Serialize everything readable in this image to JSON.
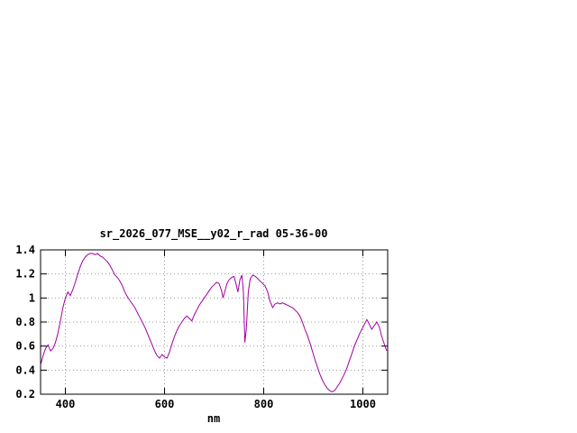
{
  "page": {
    "background_color": "#ffffff"
  },
  "chart_data": {
    "type": "line",
    "title": "sr_2026_077_MSE__y02_r_rad 05-36-00",
    "xlabel": "nm",
    "ylabel": "",
    "xlim": [
      350,
      1050
    ],
    "ylim": [
      0.2,
      1.4
    ],
    "x_ticks": [
      400,
      600,
      800,
      1000
    ],
    "x_tick_labels": [
      "400",
      "600",
      "800",
      "1000"
    ],
    "y_ticks": [
      0.2,
      0.4,
      0.6,
      0.8,
      1.0,
      1.2,
      1.4
    ],
    "y_tick_labels": [
      "0.2",
      "0.4",
      "0.6",
      "0.8",
      "1",
      "1.2",
      "1.4"
    ],
    "grid": true,
    "legend_position": "none",
    "line_color": "#a000a0",
    "grid_color": "#999999",
    "border_color": "#000000",
    "series": [
      {
        "name": "sr_2026_077_MSE__y02_r_rad",
        "points": [
          [
            350,
            0.44
          ],
          [
            355,
            0.52
          ],
          [
            360,
            0.58
          ],
          [
            365,
            0.61
          ],
          [
            370,
            0.56
          ],
          [
            375,
            0.58
          ],
          [
            380,
            0.63
          ],
          [
            385,
            0.71
          ],
          [
            390,
            0.81
          ],
          [
            395,
            0.92
          ],
          [
            400,
            1.0
          ],
          [
            405,
            1.05
          ],
          [
            410,
            1.02
          ],
          [
            415,
            1.07
          ],
          [
            420,
            1.13
          ],
          [
            425,
            1.2
          ],
          [
            430,
            1.26
          ],
          [
            435,
            1.31
          ],
          [
            440,
            1.34
          ],
          [
            445,
            1.36
          ],
          [
            450,
            1.37
          ],
          [
            455,
            1.37
          ],
          [
            460,
            1.36
          ],
          [
            465,
            1.37
          ],
          [
            470,
            1.35
          ],
          [
            475,
            1.34
          ],
          [
            480,
            1.32
          ],
          [
            485,
            1.3
          ],
          [
            490,
            1.27
          ],
          [
            495,
            1.23
          ],
          [
            500,
            1.19
          ],
          [
            505,
            1.17
          ],
          [
            510,
            1.14
          ],
          [
            515,
            1.1
          ],
          [
            520,
            1.05
          ],
          [
            525,
            1.01
          ],
          [
            530,
            0.98
          ],
          [
            535,
            0.95
          ],
          [
            540,
            0.92
          ],
          [
            545,
            0.88
          ],
          [
            550,
            0.84
          ],
          [
            555,
            0.8
          ],
          [
            560,
            0.76
          ],
          [
            565,
            0.71
          ],
          [
            570,
            0.66
          ],
          [
            575,
            0.61
          ],
          [
            580,
            0.56
          ],
          [
            585,
            0.52
          ],
          [
            590,
            0.5
          ],
          [
            595,
            0.53
          ],
          [
            600,
            0.51
          ],
          [
            605,
            0.5
          ],
          [
            610,
            0.55
          ],
          [
            615,
            0.62
          ],
          [
            620,
            0.68
          ],
          [
            625,
            0.73
          ],
          [
            630,
            0.77
          ],
          [
            635,
            0.8
          ],
          [
            640,
            0.83
          ],
          [
            645,
            0.85
          ],
          [
            650,
            0.83
          ],
          [
            655,
            0.81
          ],
          [
            660,
            0.86
          ],
          [
            665,
            0.9
          ],
          [
            670,
            0.94
          ],
          [
            675,
            0.97
          ],
          [
            680,
            1.0
          ],
          [
            685,
            1.03
          ],
          [
            690,
            1.06
          ],
          [
            695,
            1.09
          ],
          [
            700,
            1.11
          ],
          [
            705,
            1.13
          ],
          [
            710,
            1.12
          ],
          [
            715,
            1.06
          ],
          [
            718,
            1.0
          ],
          [
            722,
            1.06
          ],
          [
            726,
            1.12
          ],
          [
            730,
            1.15
          ],
          [
            735,
            1.17
          ],
          [
            740,
            1.18
          ],
          [
            744,
            1.12
          ],
          [
            748,
            1.05
          ],
          [
            752,
            1.15
          ],
          [
            756,
            1.19
          ],
          [
            759,
            1.05
          ],
          [
            762,
            0.63
          ],
          [
            765,
            0.75
          ],
          [
            769,
            1.05
          ],
          [
            773,
            1.16
          ],
          [
            778,
            1.19
          ],
          [
            783,
            1.18
          ],
          [
            788,
            1.16
          ],
          [
            793,
            1.14
          ],
          [
            798,
            1.12
          ],
          [
            803,
            1.1
          ],
          [
            808,
            1.05
          ],
          [
            813,
            0.97
          ],
          [
            818,
            0.92
          ],
          [
            823,
            0.95
          ],
          [
            828,
            0.96
          ],
          [
            833,
            0.95
          ],
          [
            838,
            0.96
          ],
          [
            843,
            0.95
          ],
          [
            848,
            0.94
          ],
          [
            853,
            0.93
          ],
          [
            858,
            0.92
          ],
          [
            863,
            0.9
          ],
          [
            868,
            0.88
          ],
          [
            873,
            0.85
          ],
          [
            878,
            0.8
          ],
          [
            883,
            0.74
          ],
          [
            888,
            0.69
          ],
          [
            893,
            0.63
          ],
          [
            898,
            0.56
          ],
          [
            903,
            0.49
          ],
          [
            908,
            0.43
          ],
          [
            913,
            0.37
          ],
          [
            918,
            0.32
          ],
          [
            923,
            0.28
          ],
          [
            928,
            0.25
          ],
          [
            933,
            0.23
          ],
          [
            938,
            0.22
          ],
          [
            943,
            0.23
          ],
          [
            948,
            0.26
          ],
          [
            953,
            0.29
          ],
          [
            958,
            0.33
          ],
          [
            963,
            0.37
          ],
          [
            968,
            0.42
          ],
          [
            973,
            0.48
          ],
          [
            978,
            0.54
          ],
          [
            983,
            0.6
          ],
          [
            988,
            0.65
          ],
          [
            993,
            0.7
          ],
          [
            998,
            0.74
          ],
          [
            1003,
            0.78
          ],
          [
            1008,
            0.82
          ],
          [
            1013,
            0.78
          ],
          [
            1018,
            0.74
          ],
          [
            1023,
            0.77
          ],
          [
            1028,
            0.8
          ],
          [
            1033,
            0.76
          ],
          [
            1038,
            0.68
          ],
          [
            1043,
            0.62
          ],
          [
            1048,
            0.56
          ]
        ]
      }
    ]
  }
}
